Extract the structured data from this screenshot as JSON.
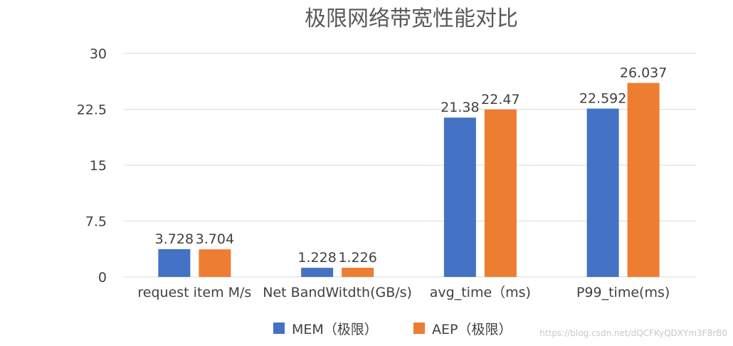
{
  "chart_data": {
    "type": "bar",
    "title": "极限网络带宽性能对比",
    "categories": [
      "request item M/s",
      "Net BandWitdth(GB/s)",
      "avg_time（ms)",
      "P99_time(ms)"
    ],
    "series": [
      {
        "name": "MEM（极限）",
        "values": [
          3.728,
          1.228,
          21.38,
          22.592
        ],
        "labels": [
          "3.728",
          "1.228",
          "21.38",
          "22.592"
        ],
        "color": "#4472C4"
      },
      {
        "name": "AEP（极限）",
        "values": [
          3.704,
          1.226,
          22.47,
          26.037
        ],
        "labels": [
          "3.704",
          "1.226",
          "22.47",
          "26.037"
        ],
        "color": "#ED7D31"
      }
    ],
    "yticks": [
      "0",
      "7.5",
      "15",
      "22.5",
      "30"
    ],
    "ylim": [
      0,
      30
    ],
    "grid": true,
    "legend": "bottom",
    "xlabel": "",
    "ylabel": ""
  },
  "watermark": "https://blog.csdn.net/dQCFKyQDXYm3F8rB0"
}
